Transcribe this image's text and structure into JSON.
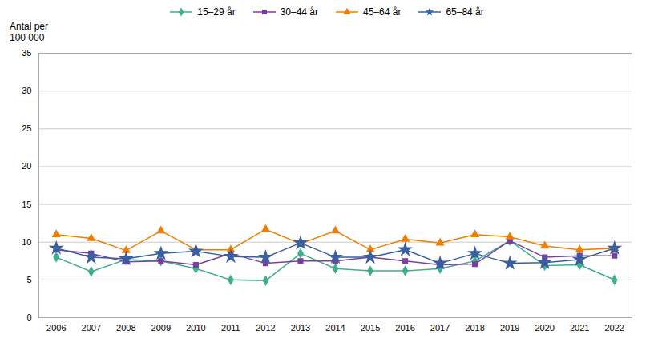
{
  "chart_data": {
    "type": "line",
    "ylabel": [
      "Antal per",
      "100 000"
    ],
    "x": [
      2006,
      2007,
      2008,
      2009,
      2010,
      2011,
      2012,
      2013,
      2014,
      2015,
      2016,
      2017,
      2018,
      2019,
      2020,
      2021,
      2022
    ],
    "series": [
      {
        "name": "15–29 år",
        "color": "#3daf8f",
        "marker": "diamond",
        "values": [
          8.0,
          6.1,
          7.7,
          7.5,
          6.5,
          5.0,
          4.9,
          8.5,
          6.5,
          6.2,
          6.2,
          6.5,
          7.5,
          10.2,
          6.9,
          7.0,
          5.0
        ]
      },
      {
        "name": "30–44 år",
        "color": "#7b3f9e",
        "marker": "square",
        "values": [
          9.0,
          8.5,
          7.4,
          7.5,
          7.0,
          8.5,
          7.2,
          7.5,
          7.5,
          8.0,
          7.5,
          7.0,
          7.1,
          10.2,
          8.0,
          8.2,
          8.2
        ]
      },
      {
        "name": "45–64 år",
        "color": "#f07d00",
        "marker": "triangle",
        "values": [
          11.0,
          10.5,
          8.9,
          11.5,
          9.0,
          9.0,
          11.7,
          9.8,
          11.5,
          9.0,
          10.4,
          9.9,
          11.0,
          10.7,
          9.5,
          9.0,
          9.2
        ]
      },
      {
        "name": "65–84 år",
        "color": "#3a5fa0",
        "marker": "star",
        "values": [
          9.2,
          8.0,
          7.8,
          8.5,
          8.8,
          8.1,
          8.0,
          9.9,
          8.0,
          8.0,
          9.0,
          7.2,
          8.5,
          7.2,
          7.3,
          7.7,
          9.2
        ]
      }
    ],
    "xlim": [
      2005.5,
      2022.5
    ],
    "xticks": [
      2006,
      2007,
      2008,
      2009,
      2010,
      2011,
      2012,
      2013,
      2014,
      2015,
      2016,
      2017,
      2018,
      2019,
      2020,
      2021,
      2022
    ],
    "ylim": [
      0,
      35
    ],
    "yticks": [
      0,
      5,
      10,
      15,
      20,
      25,
      30,
      35
    ],
    "grid": true,
    "legend": "top"
  }
}
